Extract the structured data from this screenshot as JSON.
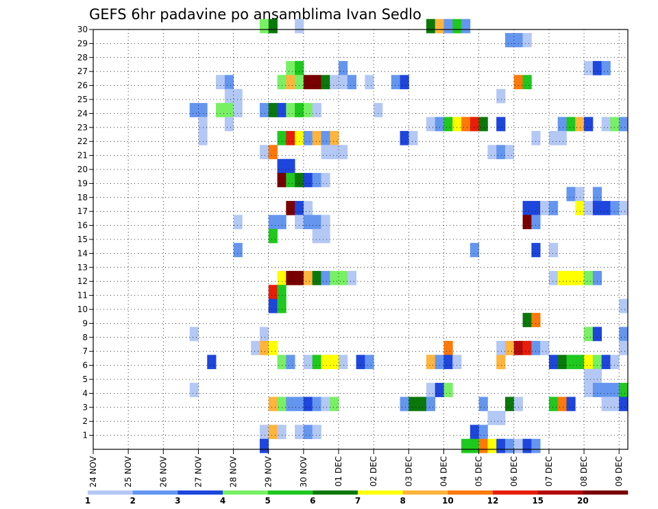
{
  "chart_data": {
    "type": "heatmap",
    "title": "GEFS 6hr padavine po ansamblima Ivan Sedlo",
    "x_labels": [
      "24 NOV",
      "25 NOV",
      "26 NOV",
      "27 NOV",
      "28 NOV",
      "29 NOV",
      "30 NOV",
      "01 DEC",
      "02 DEC",
      "03 DEC",
      "04 DEC",
      "05 DEC",
      "06 DEC",
      "07 DEC",
      "08 DEC",
      "09 DEC"
    ],
    "y_labels": [
      "1",
      "2",
      "3",
      "4",
      "5",
      "6",
      "7",
      "8",
      "9",
      "10",
      "11",
      "12",
      "13",
      "14",
      "15",
      "16",
      "17",
      "18",
      "19",
      "20",
      "21",
      "22",
      "23",
      "24",
      "25",
      "26",
      "27",
      "28",
      "29",
      "30"
    ],
    "time_steps_per_day": 4,
    "x_range_steps": [
      0,
      61
    ],
    "y_range": [
      0,
      30
    ],
    "grid": true,
    "legend_placement": "bottom",
    "legend_labels": [
      "1",
      "2",
      "3",
      "4",
      "5",
      "6",
      "7",
      "8",
      "10",
      "12",
      "15",
      "20"
    ],
    "palette": [
      "#b4c8f5",
      "#6496f0",
      "#1e46dc",
      "#78f064",
      "#1ec81e",
      "#0a780a",
      "#ffff00",
      "#ffb43c",
      "#ff780a",
      "#e61e0a",
      "#b40a0a",
      "#780000"
    ],
    "cells": [
      [
        30,
        19,
        3
      ],
      [
        30,
        20,
        5
      ],
      [
        30,
        23,
        0
      ],
      [
        30,
        38,
        5
      ],
      [
        30,
        39,
        7
      ],
      [
        30,
        40,
        1
      ],
      [
        30,
        41,
        4
      ],
      [
        30,
        42,
        1
      ],
      [
        29,
        47,
        1
      ],
      [
        29,
        48,
        1
      ],
      [
        29,
        49,
        0
      ],
      [
        27,
        22,
        3
      ],
      [
        27,
        23,
        4
      ],
      [
        27,
        28,
        1
      ],
      [
        27,
        56,
        0
      ],
      [
        27,
        57,
        2
      ],
      [
        27,
        58,
        1
      ],
      [
        26,
        14,
        0
      ],
      [
        26,
        15,
        1
      ],
      [
        26,
        21,
        3
      ],
      [
        26,
        22,
        7
      ],
      [
        26,
        23,
        3
      ],
      [
        26,
        24,
        11
      ],
      [
        26,
        25,
        11
      ],
      [
        26,
        26,
        5
      ],
      [
        26,
        27,
        0
      ],
      [
        26,
        28,
        0
      ],
      [
        26,
        29,
        1
      ],
      [
        26,
        31,
        0
      ],
      [
        26,
        34,
        1
      ],
      [
        26,
        35,
        2
      ],
      [
        26,
        48,
        8
      ],
      [
        26,
        49,
        4
      ],
      [
        25,
        15,
        0
      ],
      [
        25,
        16,
        0
      ],
      [
        25,
        46,
        0
      ],
      [
        24,
        11,
        1
      ],
      [
        24,
        12,
        1
      ],
      [
        24,
        14,
        3
      ],
      [
        24,
        15,
        3
      ],
      [
        24,
        16,
        0
      ],
      [
        24,
        19,
        1
      ],
      [
        24,
        20,
        5
      ],
      [
        24,
        21,
        2
      ],
      [
        24,
        22,
        3
      ],
      [
        24,
        23,
        4
      ],
      [
        24,
        24,
        3
      ],
      [
        24,
        25,
        0
      ],
      [
        24,
        32,
        0
      ],
      [
        23,
        12,
        0
      ],
      [
        23,
        15,
        0
      ],
      [
        23,
        38,
        0
      ],
      [
        23,
        39,
        1
      ],
      [
        23,
        40,
        4
      ],
      [
        23,
        41,
        6
      ],
      [
        23,
        42,
        8
      ],
      [
        23,
        43,
        9
      ],
      [
        23,
        44,
        5
      ],
      [
        23,
        46,
        2
      ],
      [
        23,
        53,
        1
      ],
      [
        23,
        54,
        4
      ],
      [
        23,
        55,
        7
      ],
      [
        23,
        56,
        2
      ],
      [
        23,
        58,
        0
      ],
      [
        23,
        59,
        3
      ],
      [
        23,
        60,
        1
      ],
      [
        22,
        12,
        0
      ],
      [
        22,
        21,
        4
      ],
      [
        22,
        22,
        9
      ],
      [
        22,
        23,
        6
      ],
      [
        22,
        24,
        1
      ],
      [
        22,
        25,
        7
      ],
      [
        22,
        26,
        1
      ],
      [
        22,
        27,
        7
      ],
      [
        22,
        35,
        2
      ],
      [
        22,
        36,
        0
      ],
      [
        22,
        50,
        0
      ],
      [
        22,
        52,
        0
      ],
      [
        22,
        53,
        0
      ],
      [
        21,
        19,
        0
      ],
      [
        21,
        20,
        8
      ],
      [
        21,
        26,
        0
      ],
      [
        21,
        27,
        0
      ],
      [
        21,
        28,
        0
      ],
      [
        21,
        45,
        0
      ],
      [
        21,
        46,
        1
      ],
      [
        21,
        47,
        0
      ],
      [
        20,
        21,
        2
      ],
      [
        20,
        22,
        2
      ],
      [
        19,
        21,
        11
      ],
      [
        19,
        22,
        4
      ],
      [
        19,
        23,
        5
      ],
      [
        19,
        24,
        2
      ],
      [
        19,
        25,
        1
      ],
      [
        19,
        26,
        0
      ],
      [
        18,
        54,
        1
      ],
      [
        18,
        55,
        0
      ],
      [
        18,
        57,
        1
      ],
      [
        17,
        22,
        11
      ],
      [
        17,
        23,
        2
      ],
      [
        17,
        24,
        0
      ],
      [
        17,
        49,
        2
      ],
      [
        17,
        50,
        2
      ],
      [
        17,
        51,
        0
      ],
      [
        17,
        52,
        1
      ],
      [
        17,
        55,
        6
      ],
      [
        17,
        56,
        0
      ],
      [
        17,
        57,
        2
      ],
      [
        17,
        58,
        2
      ],
      [
        17,
        59,
        1
      ],
      [
        17,
        60,
        0
      ],
      [
        16,
        16,
        0
      ],
      [
        16,
        20,
        1
      ],
      [
        16,
        21,
        1
      ],
      [
        16,
        23,
        0
      ],
      [
        16,
        24,
        1
      ],
      [
        16,
        25,
        1
      ],
      [
        16,
        26,
        0
      ],
      [
        16,
        49,
        11
      ],
      [
        16,
        50,
        1
      ],
      [
        15,
        20,
        4
      ],
      [
        15,
        25,
        0
      ],
      [
        15,
        26,
        0
      ],
      [
        14,
        16,
        1
      ],
      [
        14,
        43,
        1
      ],
      [
        14,
        50,
        2
      ],
      [
        14,
        52,
        0
      ],
      [
        12,
        21,
        6
      ],
      [
        12,
        22,
        11
      ],
      [
        12,
        23,
        11
      ],
      [
        12,
        24,
        7
      ],
      [
        12,
        25,
        5
      ],
      [
        12,
        26,
        1
      ],
      [
        12,
        27,
        3
      ],
      [
        12,
        28,
        3
      ],
      [
        12,
        29,
        0
      ],
      [
        12,
        52,
        0
      ],
      [
        12,
        53,
        6
      ],
      [
        12,
        54,
        6
      ],
      [
        12,
        55,
        6
      ],
      [
        12,
        56,
        3
      ],
      [
        12,
        57,
        1
      ],
      [
        11,
        20,
        9
      ],
      [
        11,
        21,
        4
      ],
      [
        10,
        20,
        2
      ],
      [
        10,
        21,
        4
      ],
      [
        10,
        60,
        0
      ],
      [
        9,
        49,
        5
      ],
      [
        9,
        50,
        8
      ],
      [
        8,
        11,
        0
      ],
      [
        8,
        19,
        0
      ],
      [
        8,
        56,
        3
      ],
      [
        8,
        57,
        2
      ],
      [
        8,
        60,
        1
      ],
      [
        7,
        18,
        0
      ],
      [
        7,
        19,
        7
      ],
      [
        7,
        20,
        6
      ],
      [
        7,
        40,
        8
      ],
      [
        7,
        46,
        0
      ],
      [
        7,
        47,
        7
      ],
      [
        7,
        48,
        10
      ],
      [
        7,
        49,
        9
      ],
      [
        7,
        50,
        1
      ],
      [
        7,
        51,
        0
      ],
      [
        7,
        60,
        0
      ],
      [
        6,
        13,
        2
      ],
      [
        6,
        21,
        3
      ],
      [
        6,
        22,
        1
      ],
      [
        6,
        24,
        0
      ],
      [
        6,
        25,
        4
      ],
      [
        6,
        26,
        6
      ],
      [
        6,
        27,
        6
      ],
      [
        6,
        28,
        0
      ],
      [
        6,
        30,
        2
      ],
      [
        6,
        31,
        1
      ],
      [
        6,
        38,
        7
      ],
      [
        6,
        39,
        1
      ],
      [
        6,
        40,
        2
      ],
      [
        6,
        41,
        0
      ],
      [
        6,
        46,
        7
      ],
      [
        6,
        52,
        2
      ],
      [
        6,
        53,
        5
      ],
      [
        6,
        54,
        4
      ],
      [
        6,
        55,
        4
      ],
      [
        6,
        56,
        6
      ],
      [
        6,
        57,
        3
      ],
      [
        6,
        58,
        2
      ],
      [
        6,
        59,
        0
      ],
      [
        5,
        56,
        0
      ],
      [
        5,
        57,
        0
      ],
      [
        4,
        11,
        0
      ],
      [
        4,
        38,
        0
      ],
      [
        4,
        39,
        2
      ],
      [
        4,
        40,
        3
      ],
      [
        4,
        56,
        0
      ],
      [
        4,
        57,
        1
      ],
      [
        4,
        58,
        1
      ],
      [
        4,
        59,
        1
      ],
      [
        4,
        60,
        4
      ],
      [
        3,
        20,
        7
      ],
      [
        3,
        21,
        3
      ],
      [
        3,
        22,
        1
      ],
      [
        3,
        23,
        1
      ],
      [
        3,
        24,
        2
      ],
      [
        3,
        25,
        1
      ],
      [
        3,
        26,
        0
      ],
      [
        3,
        27,
        3
      ],
      [
        3,
        35,
        1
      ],
      [
        3,
        36,
        5
      ],
      [
        3,
        37,
        5
      ],
      [
        3,
        38,
        1
      ],
      [
        3,
        44,
        1
      ],
      [
        3,
        47,
        5
      ],
      [
        3,
        48,
        0
      ],
      [
        3,
        52,
        4
      ],
      [
        3,
        53,
        8
      ],
      [
        3,
        54,
        2
      ],
      [
        3,
        58,
        0
      ],
      [
        3,
        59,
        0
      ],
      [
        3,
        60,
        2
      ],
      [
        2,
        45,
        0
      ],
      [
        2,
        46,
        0
      ],
      [
        1,
        19,
        0
      ],
      [
        1,
        20,
        7
      ],
      [
        1,
        21,
        0
      ],
      [
        1,
        23,
        0
      ],
      [
        1,
        24,
        1
      ],
      [
        1,
        25,
        0
      ],
      [
        1,
        43,
        2
      ],
      [
        1,
        44,
        1
      ],
      [
        0,
        19,
        2
      ],
      [
        0,
        42,
        4
      ],
      [
        0,
        43,
        4
      ],
      [
        0,
        44,
        8
      ],
      [
        0,
        45,
        6
      ],
      [
        0,
        46,
        2
      ],
      [
        0,
        47,
        1
      ],
      [
        0,
        48,
        0
      ],
      [
        0,
        49,
        2
      ],
      [
        0,
        50,
        1
      ]
    ]
  }
}
